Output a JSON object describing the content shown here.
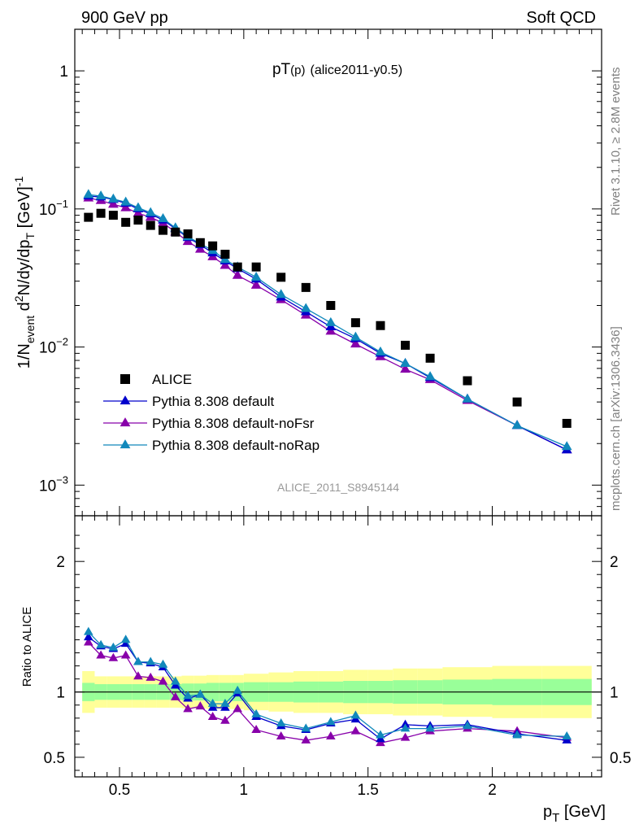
{
  "header": {
    "left": "900 GeV pp",
    "right": "Soft QCD"
  },
  "side_labels": {
    "rivet": "Rivet 3.1.10, ≥ 2.8M events",
    "mcplots": "mcplots.cern.ch [arXiv:1306.3436]"
  },
  "chart_data": [
    {
      "type": "scatter",
      "panel": "main",
      "title_main": "pT",
      "title_sub": "(p)",
      "title_tag": "(alice2011-y0.5)",
      "watermark": "ALICE_2011_S8945144",
      "ylabel": "1/N_event d²N/dy/dp_T [GeV⁻¹]",
      "ylabel_parts": {
        "a": "1/N",
        "b": "event",
        "c": " d",
        "d": "2",
        "e": "N/dy/dp",
        "f": "T",
        "g": " [GeV]",
        "h": "-1"
      },
      "yscale": "log",
      "xlim": [
        0.32,
        2.44
      ],
      "ylim": [
        0.0006,
        2.0
      ],
      "y_ticks": [
        {
          "value": 1,
          "label_main": "1",
          "label_exp": ""
        },
        {
          "value": 0.1,
          "label_main": "10",
          "label_exp": "−1"
        },
        {
          "value": 0.01,
          "label_main": "10",
          "label_exp": "−2"
        },
        {
          "value": 0.001,
          "label_main": "10",
          "label_exp": "−3"
        }
      ],
      "legend_position": "bottom-left",
      "x": [
        0.375,
        0.425,
        0.475,
        0.525,
        0.575,
        0.625,
        0.675,
        0.725,
        0.775,
        0.825,
        0.875,
        0.925,
        0.975,
        1.05,
        1.15,
        1.25,
        1.35,
        1.45,
        1.55,
        1.65,
        1.75,
        1.9,
        2.1,
        2.3
      ],
      "series": [
        {
          "name": "ALICE",
          "color": "#000000",
          "marker": "square",
          "values": [
            0.087,
            0.093,
            0.09,
            0.08,
            0.083,
            0.076,
            0.07,
            0.068,
            0.066,
            0.057,
            0.054,
            0.047,
            0.038,
            0.038,
            0.032,
            0.027,
            0.02,
            0.015,
            0.0143,
            0.0103,
            0.0083,
            0.0057,
            0.004,
            0.0028
          ]
        },
        {
          "name": "Pythia 8.308 default",
          "color": "#0000cc",
          "marker": "triangle",
          "values": [
            0.124,
            0.122,
            0.117,
            0.11,
            0.1,
            0.092,
            0.083,
            0.072,
            0.062,
            0.055,
            0.048,
            0.042,
            0.037,
            0.031,
            0.023,
            0.018,
            0.014,
            0.0115,
            0.009,
            0.0076,
            0.006,
            0.0042,
            0.0027,
            0.0018
          ]
        },
        {
          "name": "Pythia 8.308 default-noFsr",
          "color": "#8800aa",
          "marker": "triangle",
          "values": [
            0.12,
            0.115,
            0.108,
            0.102,
            0.093,
            0.087,
            0.079,
            0.068,
            0.058,
            0.051,
            0.045,
            0.039,
            0.033,
            0.028,
            0.022,
            0.017,
            0.013,
            0.0105,
            0.0085,
            0.0069,
            0.0058,
            0.0041,
            0.0027,
            0.0018
          ]
        },
        {
          "name": "Pythia 8.308 default-noRap",
          "color": "#1188bb",
          "marker": "triangle",
          "values": [
            0.127,
            0.124,
            0.118,
            0.112,
            0.102,
            0.094,
            0.085,
            0.073,
            0.063,
            0.056,
            0.05,
            0.043,
            0.038,
            0.032,
            0.024,
            0.019,
            0.015,
            0.0118,
            0.0092,
            0.0076,
            0.0061,
            0.0042,
            0.0027,
            0.0019
          ]
        }
      ]
    },
    {
      "type": "line",
      "panel": "ratio",
      "ylabel": "Ratio to ALICE",
      "xlabel_main": "p",
      "xlabel_sub": "T",
      "xlabel_unit": " [GeV]",
      "xlim": [
        0.32,
        2.44
      ],
      "ylim": [
        0.35,
        2.35
      ],
      "x_ticks": [
        {
          "value": 0.5,
          "label": "0.5"
        },
        {
          "value": 1,
          "label": "1"
        },
        {
          "value": 1.5,
          "label": "1.5"
        },
        {
          "value": 2,
          "label": "2"
        }
      ],
      "y_ticks": [
        {
          "value": 0.5,
          "label": "0.5"
        },
        {
          "value": 1,
          "label": "1"
        },
        {
          "value": 2,
          "label": "2"
        }
      ],
      "reference_line": 1,
      "bin_edges": [
        0.35,
        0.4,
        0.45,
        0.5,
        0.55,
        0.6,
        0.65,
        0.7,
        0.75,
        0.8,
        0.85,
        0.9,
        0.95,
        1.0,
        1.1,
        1.2,
        1.3,
        1.4,
        1.5,
        1.6,
        1.7,
        1.8,
        2.0,
        2.2,
        2.4
      ],
      "band_stat": [
        0.07,
        0.06,
        0.06,
        0.06,
        0.06,
        0.06,
        0.06,
        0.06,
        0.065,
        0.065,
        0.07,
        0.07,
        0.07,
        0.075,
        0.075,
        0.08,
        0.08,
        0.085,
        0.085,
        0.09,
        0.09,
        0.095,
        0.1,
        0.1
      ],
      "band_total": [
        0.16,
        0.12,
        0.12,
        0.12,
        0.12,
        0.12,
        0.12,
        0.12,
        0.125,
        0.125,
        0.13,
        0.13,
        0.13,
        0.14,
        0.15,
        0.16,
        0.16,
        0.17,
        0.17,
        0.18,
        0.18,
        0.19,
        0.2,
        0.2
      ],
      "x": [
        0.375,
        0.425,
        0.475,
        0.525,
        0.575,
        0.625,
        0.675,
        0.725,
        0.775,
        0.825,
        0.875,
        0.925,
        0.975,
        1.05,
        1.15,
        1.25,
        1.35,
        1.45,
        1.55,
        1.65,
        1.75,
        1.9,
        2.1,
        2.3
      ],
      "series": [
        {
          "name": "Pythia 8.308 default",
          "color": "#0000cc",
          "values": [
            1.42,
            1.35,
            1.33,
            1.37,
            1.23,
            1.22,
            1.19,
            1.05,
            0.95,
            0.98,
            0.88,
            0.88,
            0.99,
            0.81,
            0.74,
            0.71,
            0.76,
            0.79,
            0.64,
            0.75,
            0.74,
            0.75,
            0.68,
            0.63
          ]
        },
        {
          "name": "Pythia 8.308 default-noFsr",
          "color": "#8800aa",
          "values": [
            1.38,
            1.28,
            1.26,
            1.28,
            1.12,
            1.11,
            1.08,
            0.96,
            0.87,
            0.89,
            0.81,
            0.78,
            0.87,
            0.71,
            0.66,
            0.63,
            0.66,
            0.7,
            0.61,
            0.65,
            0.7,
            0.72,
            0.7,
            0.65
          ]
        },
        {
          "name": "Pythia 8.308 default-noRap",
          "color": "#1188bb",
          "values": [
            1.46,
            1.36,
            1.34,
            1.4,
            1.23,
            1.23,
            1.21,
            1.08,
            0.97,
            0.98,
            0.91,
            0.91,
            1.01,
            0.83,
            0.76,
            0.72,
            0.77,
            0.82,
            0.67,
            0.72,
            0.72,
            0.74,
            0.67,
            0.66
          ]
        }
      ]
    }
  ]
}
